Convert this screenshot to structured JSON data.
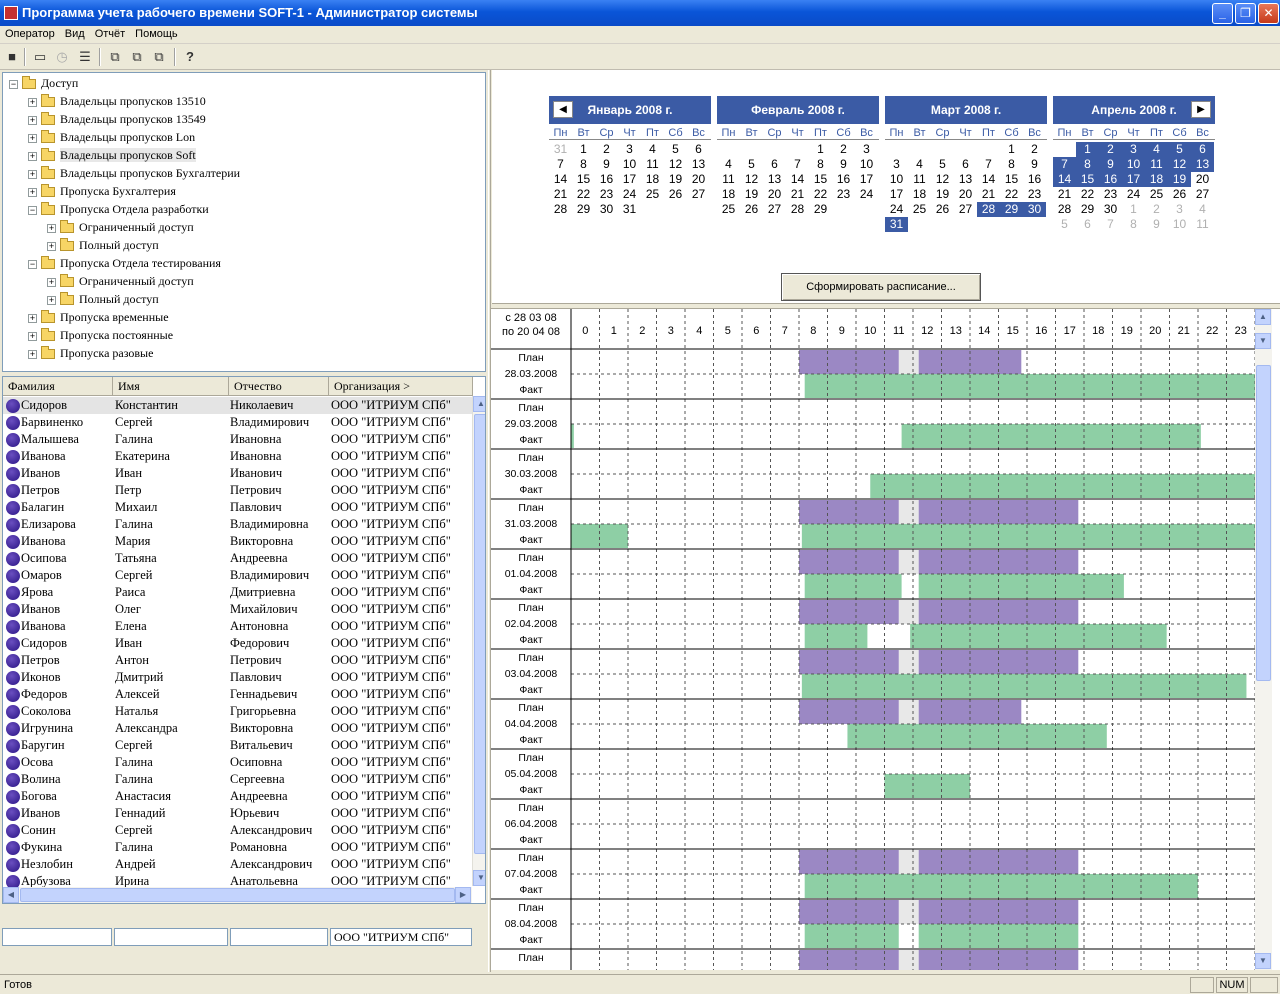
{
  "window": {
    "title": "Программа учета рабочего времени SOFT-1 - Администратор системы"
  },
  "menu": [
    "Оператор",
    "Вид",
    "Отчёт",
    "Помощь"
  ],
  "toolbar": {
    "icons": [
      "save-icon",
      "window-icon",
      "clock-icon",
      "tree-icon",
      "copy-icon",
      "copy2-icon",
      "copy3-icon",
      "help-icon"
    ]
  },
  "tree": [
    {
      "label": "Доступ",
      "level": 0,
      "expanded": true
    },
    {
      "label": "Владельцы пропусков 13510",
      "level": 1
    },
    {
      "label": "Владельцы пропусков 13549",
      "level": 1
    },
    {
      "label": "Владельцы пропусков Lon",
      "level": 1
    },
    {
      "label": "Владельцы пропусков Soft",
      "level": 1,
      "selected": true
    },
    {
      "label": "Владельцы пропусков Бухгалтерии",
      "level": 1
    },
    {
      "label": "Пропуска Бухгалтерия",
      "level": 1
    },
    {
      "label": "Пропуска Отдела разработки",
      "level": 1,
      "expanded": true
    },
    {
      "label": "Ограниченный доступ",
      "level": 2
    },
    {
      "label": "Полный доступ",
      "level": 2
    },
    {
      "label": "Пропуска Отдела тестирования",
      "level": 1,
      "expanded": true
    },
    {
      "label": "Ограниченный доступ",
      "level": 2
    },
    {
      "label": "Полный доступ",
      "level": 2
    },
    {
      "label": "Пропуска временные",
      "level": 1
    },
    {
      "label": "Пропуска постоянные",
      "level": 1
    },
    {
      "label": "Пропуска разовые",
      "level": 1
    }
  ],
  "list": {
    "columns": [
      "Фамилия",
      "Имя",
      "Отчество",
      "Организация >"
    ],
    "rows": [
      [
        "Сидоров",
        "Константин",
        "Николаевич",
        "ООО \"ИТРИУМ СПб\""
      ],
      [
        "Барвиненко",
        "Сергей",
        "Владимирович",
        "ООО \"ИТРИУМ СПб\""
      ],
      [
        "Малышева",
        "Галина",
        "Ивановна",
        "ООО \"ИТРИУМ СПб\""
      ],
      [
        "Иванова",
        "Екатерина",
        "Ивановна",
        "ООО \"ИТРИУМ СПб\""
      ],
      [
        "Иванов",
        "Иван",
        "Иванович",
        "ООО \"ИТРИУМ СПб\""
      ],
      [
        "Петров",
        "Петр",
        "Петрович",
        "ООО \"ИТРИУМ СПб\""
      ],
      [
        "Балагин",
        "Михаил",
        "Павлович",
        "ООО \"ИТРИУМ СПб\""
      ],
      [
        "Елизарова",
        "Галина",
        "Владимировна",
        "ООО \"ИТРИУМ СПб\""
      ],
      [
        "Иванова",
        "Мария",
        "Викторовна",
        "ООО \"ИТРИУМ СПб\""
      ],
      [
        "Осипова",
        "Татьяна",
        "Андреевна",
        "ООО \"ИТРИУМ СПб\""
      ],
      [
        "Омаров",
        "Сергей",
        "Владимирович",
        "ООО \"ИТРИУМ СПб\""
      ],
      [
        "Ярова",
        "Раиса",
        "Дмитриевна",
        "ООО \"ИТРИУМ СПб\""
      ],
      [
        "Иванов",
        "Олег",
        "Михайлович",
        "ООО \"ИТРИУМ СПб\""
      ],
      [
        "Иванова",
        "Елена",
        "Антоновна",
        "ООО \"ИТРИУМ СПб\""
      ],
      [
        "Сидоров",
        "Иван",
        "Федорович",
        "ООО \"ИТРИУМ СПб\""
      ],
      [
        "Петров",
        "Антон",
        "Петрович",
        "ООО \"ИТРИУМ СПб\""
      ],
      [
        "Иконов",
        "Дмитрий",
        "Павлович",
        "ООО \"ИТРИУМ СПб\""
      ],
      [
        "Федоров",
        "Алексей",
        "Геннадьевич",
        "ООО \"ИТРИУМ СПб\""
      ],
      [
        "Соколова",
        "Наталья",
        "Григорьевна",
        "ООО \"ИТРИУМ СПб\""
      ],
      [
        "Игрунина",
        "Александра",
        "Викторовна",
        "ООО \"ИТРИУМ СПб\""
      ],
      [
        "Баругин",
        "Сергей",
        "Витальевич",
        "ООО \"ИТРИУМ СПб\""
      ],
      [
        "Осова",
        "Галина",
        "Осиповна",
        "ООО \"ИТРИУМ СПб\""
      ],
      [
        "Волина",
        "Галина",
        "Сергеевна",
        "ООО \"ИТРИУМ СПб\""
      ],
      [
        "Богова",
        "Анастасия",
        "Андреевна",
        "ООО \"ИТРИУМ СПб\""
      ],
      [
        "Иванов",
        "Геннадий",
        "Юрьевич",
        "ООО \"ИТРИУМ СПб\""
      ],
      [
        "Сонин",
        "Сергей",
        "Александрович",
        "ООО \"ИТРИУМ СПб\""
      ],
      [
        "Фукина",
        "Галина",
        "Романовна",
        "ООО \"ИТРИУМ СПб\""
      ],
      [
        "Незлобин",
        "Андрей",
        "Александрович",
        "ООО \"ИТРИУМ СПб\""
      ],
      [
        "Арбузова",
        "Ирина",
        "Анатольевна",
        "ООО \"ИТРИУМ СПб\""
      ]
    ]
  },
  "edit_row": [
    "",
    "",
    "",
    "ООО \"ИТРИУМ СПб\""
  ],
  "calendar": {
    "weekdays": [
      "Пн",
      "Вт",
      "Ср",
      "Чт",
      "Пт",
      "Сб",
      "Вс"
    ],
    "months": [
      {
        "title": "Январь 2008 г.",
        "nav": "◀",
        "cells": [
          [
            "31",
            "g"
          ],
          [
            "1",
            ""
          ],
          [
            "2",
            ""
          ],
          [
            "3",
            ""
          ],
          [
            "4",
            ""
          ],
          [
            "5",
            ""
          ],
          [
            "6",
            ""
          ],
          [
            "7",
            ""
          ],
          [
            "8",
            ""
          ],
          [
            "9",
            ""
          ],
          [
            "10",
            ""
          ],
          [
            "11",
            ""
          ],
          [
            "12",
            ""
          ],
          [
            "13",
            ""
          ],
          [
            "14",
            ""
          ],
          [
            "15",
            ""
          ],
          [
            "16",
            ""
          ],
          [
            "17",
            ""
          ],
          [
            "18",
            ""
          ],
          [
            "19",
            ""
          ],
          [
            "20",
            ""
          ],
          [
            "21",
            ""
          ],
          [
            "22",
            ""
          ],
          [
            "23",
            ""
          ],
          [
            "24",
            ""
          ],
          [
            "25",
            ""
          ],
          [
            "26",
            ""
          ],
          [
            "27",
            ""
          ],
          [
            "28",
            ""
          ],
          [
            "29",
            ""
          ],
          [
            "30",
            ""
          ],
          [
            "31",
            ""
          ]
        ]
      },
      {
        "title": "Февраль 2008 г.",
        "cells": [
          [
            "",
            ""
          ],
          [
            "",
            ""
          ],
          [
            "",
            ""
          ],
          [
            "",
            ""
          ],
          [
            "1",
            ""
          ],
          [
            "2",
            ""
          ],
          [
            "3",
            ""
          ],
          [
            "4",
            ""
          ],
          [
            "5",
            ""
          ],
          [
            "6",
            ""
          ],
          [
            "7",
            ""
          ],
          [
            "8",
            ""
          ],
          [
            "9",
            ""
          ],
          [
            "10",
            ""
          ],
          [
            "11",
            ""
          ],
          [
            "12",
            ""
          ],
          [
            "13",
            ""
          ],
          [
            "14",
            ""
          ],
          [
            "15",
            ""
          ],
          [
            "16",
            ""
          ],
          [
            "17",
            ""
          ],
          [
            "18",
            ""
          ],
          [
            "19",
            ""
          ],
          [
            "20",
            ""
          ],
          [
            "21",
            ""
          ],
          [
            "22",
            ""
          ],
          [
            "23",
            ""
          ],
          [
            "24",
            ""
          ],
          [
            "25",
            ""
          ],
          [
            "26",
            ""
          ],
          [
            "27",
            ""
          ],
          [
            "28",
            ""
          ],
          [
            "29",
            ""
          ]
        ]
      },
      {
        "title": "Март 2008 г.",
        "cells": [
          [
            "",
            ""
          ],
          [
            "",
            ""
          ],
          [
            "",
            ""
          ],
          [
            "",
            ""
          ],
          [
            "",
            ""
          ],
          [
            "1",
            ""
          ],
          [
            "2",
            ""
          ],
          [
            "3",
            ""
          ],
          [
            "4",
            ""
          ],
          [
            "5",
            ""
          ],
          [
            "6",
            ""
          ],
          [
            "7",
            ""
          ],
          [
            "8",
            ""
          ],
          [
            "9",
            ""
          ],
          [
            "10",
            ""
          ],
          [
            "11",
            ""
          ],
          [
            "12",
            ""
          ],
          [
            "13",
            ""
          ],
          [
            "14",
            ""
          ],
          [
            "15",
            ""
          ],
          [
            "16",
            ""
          ],
          [
            "17",
            ""
          ],
          [
            "18",
            ""
          ],
          [
            "19",
            ""
          ],
          [
            "20",
            ""
          ],
          [
            "21",
            ""
          ],
          [
            "22",
            ""
          ],
          [
            "23",
            ""
          ],
          [
            "24",
            ""
          ],
          [
            "25",
            ""
          ],
          [
            "26",
            ""
          ],
          [
            "27",
            ""
          ],
          [
            "28",
            "h"
          ],
          [
            "29",
            "h"
          ],
          [
            "30",
            "h"
          ],
          [
            "31",
            "h"
          ]
        ]
      },
      {
        "title": "Апрель 2008 г.",
        "nav": "▶",
        "cells": [
          [
            "",
            ""
          ],
          [
            "1",
            "h"
          ],
          [
            "2",
            "h"
          ],
          [
            "3",
            "h"
          ],
          [
            "4",
            "h"
          ],
          [
            "5",
            "h"
          ],
          [
            "6",
            "h"
          ],
          [
            "7",
            "h"
          ],
          [
            "8",
            "h"
          ],
          [
            "9",
            "h"
          ],
          [
            "10",
            "h"
          ],
          [
            "11",
            "h"
          ],
          [
            "12",
            "h"
          ],
          [
            "13",
            "h"
          ],
          [
            "14",
            "h"
          ],
          [
            "15",
            "h"
          ],
          [
            "16",
            "h"
          ],
          [
            "17",
            "h"
          ],
          [
            "18",
            "h"
          ],
          [
            "19",
            "h"
          ],
          [
            "20",
            ""
          ],
          [
            "21",
            ""
          ],
          [
            "22",
            ""
          ],
          [
            "23",
            ""
          ],
          [
            "24",
            ""
          ],
          [
            "25",
            ""
          ],
          [
            "26",
            ""
          ],
          [
            "27",
            ""
          ],
          [
            "28",
            ""
          ],
          [
            "29",
            ""
          ],
          [
            "30",
            ""
          ],
          [
            "1",
            "g"
          ],
          [
            "2",
            "g"
          ],
          [
            "3",
            "g"
          ],
          [
            "4",
            "g"
          ],
          [
            "5",
            "g"
          ],
          [
            "6",
            "g"
          ],
          [
            "7",
            "g"
          ],
          [
            "8",
            "g"
          ],
          [
            "9",
            "g"
          ],
          [
            "10",
            "g"
          ],
          [
            "11",
            "g"
          ]
        ]
      }
    ],
    "form_button": "Сформировать расписание..."
  },
  "schedule": {
    "period_from": "с 28 03 08",
    "period_to": "по 20 04 08",
    "hours": [
      "0",
      "1",
      "2",
      "3",
      "4",
      "5",
      "6",
      "7",
      "8",
      "9",
      "10",
      "11",
      "12",
      "13",
      "14",
      "15",
      "16",
      "17",
      "18",
      "19",
      "20",
      "21",
      "22",
      "23"
    ],
    "plan_label": "План",
    "fact_label": "Факт",
    "colors": {
      "plan": "#9b88c4",
      "fact": "#8ecfa5",
      "break": "#e8e8e8"
    },
    "days": [
      {
        "date": "28.03.2008",
        "plan": [
          [
            8,
            11.5
          ],
          [
            12.2,
            15.8
          ]
        ],
        "break": [
          11.5,
          12.2
        ],
        "fact": [
          [
            8.2,
            24
          ]
        ]
      },
      {
        "date": "29.03.2008",
        "plan": [],
        "fact": [
          [
            0,
            0.1
          ],
          [
            11.6,
            22.1
          ]
        ]
      },
      {
        "date": "30.03.2008",
        "plan": [],
        "fact": [
          [
            10.5,
            24
          ]
        ]
      },
      {
        "date": "31.03.2008",
        "plan": [
          [
            8,
            11.5
          ],
          [
            12.2,
            17.8
          ]
        ],
        "break": [
          11.5,
          12.2
        ],
        "fact": [
          [
            0,
            2
          ],
          [
            8.1,
            24
          ]
        ]
      },
      {
        "date": "01.04.2008",
        "plan": [
          [
            8,
            11.5
          ],
          [
            12.2,
            17.8
          ]
        ],
        "break": [
          11.5,
          12.2
        ],
        "fact": [
          [
            8.2,
            11.6
          ],
          [
            12.2,
            19.4
          ]
        ]
      },
      {
        "date": "02.04.2008",
        "plan": [
          [
            8,
            11.5
          ],
          [
            12.2,
            17.8
          ]
        ],
        "break": [
          11.5,
          12.2
        ],
        "fact": [
          [
            8.2,
            10.4
          ],
          [
            11.9,
            20.9
          ]
        ]
      },
      {
        "date": "03.04.2008",
        "plan": [
          [
            8,
            11.5
          ],
          [
            12.2,
            17.8
          ]
        ],
        "break": [
          11.5,
          12.2
        ],
        "fact": [
          [
            8.1,
            23.7
          ]
        ]
      },
      {
        "date": "04.04.2008",
        "plan": [
          [
            8,
            11.5
          ],
          [
            12.2,
            15.8
          ]
        ],
        "break": [
          11.5,
          12.2
        ],
        "fact": [
          [
            9.7,
            18.8
          ]
        ]
      },
      {
        "date": "05.04.2008",
        "plan": [],
        "fact": [
          [
            11,
            14
          ]
        ]
      },
      {
        "date": "06.04.2008",
        "plan": [],
        "fact": []
      },
      {
        "date": "07.04.2008",
        "plan": [
          [
            8,
            11.5
          ],
          [
            12.2,
            17.8
          ]
        ],
        "break": [
          11.5,
          12.2
        ],
        "fact": [
          [
            8.2,
            22
          ]
        ]
      },
      {
        "date": "08.04.2008",
        "plan": [
          [
            8,
            11.5
          ],
          [
            12.2,
            17.8
          ]
        ],
        "break": [
          11.5,
          12.2
        ],
        "fact": [
          [
            8.2,
            11.5
          ],
          [
            12.2,
            17.8
          ]
        ]
      },
      {
        "date": "",
        "plan": [
          [
            8,
            11.5
          ],
          [
            12.2,
            17.8
          ]
        ],
        "break": [
          11.5,
          12.2
        ],
        "fact": []
      }
    ]
  },
  "status": {
    "left": "Готов",
    "num": "NUM"
  }
}
